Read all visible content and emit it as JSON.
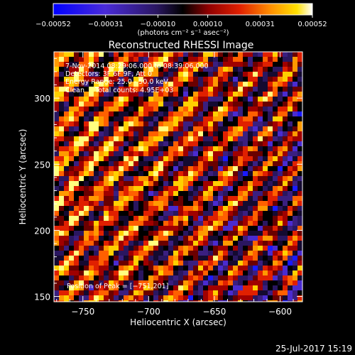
{
  "chart_data": {
    "type": "heatmap",
    "title": "Reconstructed RHESSI Image",
    "xlabel": "Heliocentric X (arcsec)",
    "ylabel": "Heliocentric Y (arcsec)",
    "xlim": [
      -772,
      -583
    ],
    "ylim": [
      146,
      335
    ],
    "xticks": [
      -750,
      -700,
      -650,
      -600
    ],
    "xtick_labels": [
      "−750",
      "−700",
      "−650",
      "−600"
    ],
    "yticks": [
      150,
      200,
      250,
      300
    ],
    "ytick_labels": [
      "150",
      "200",
      "250",
      "300"
    ],
    "colorbar": {
      "range": [
        -0.00052,
        0.00052
      ],
      "ticks": [
        -0.00052,
        -0.00031,
        -0.0001,
        0.0001,
        0.00031,
        0.00052
      ],
      "tick_labels": [
        "−0.00052",
        "−0.00031",
        "−0.00010",
        "0.00010",
        "0.00031",
        "0.00052"
      ],
      "unit_label": "(photons cm⁻² s⁻¹ asec⁻²)",
      "colors": [
        "#1a1aff",
        "#5a2bd0",
        "#3a1f70",
        "#000000",
        "#8a0000",
        "#e02000",
        "#ff8000",
        "#ffd000",
        "#ffffff"
      ]
    },
    "annotations": [
      " 7-Nov-2014 08:29:06.000 to 08:39:06.000",
      "Detectors: 3F 6F 9F, Att 0",
      "Energy Range: 25.0 - 50.0 keV",
      "Clean     Total counts: 4.95E+03"
    ],
    "peak_label": "Position of Peak = [−751,201]",
    "peak": [
      -751,
      201
    ],
    "grid": false,
    "legend": "none"
  },
  "footer": {
    "date": "25-Jul-2017 15:19"
  }
}
